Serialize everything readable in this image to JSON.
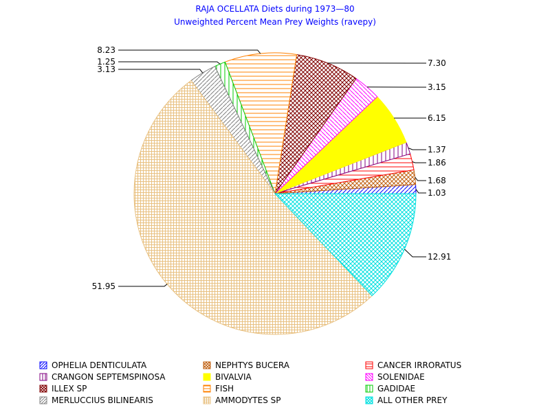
{
  "chart_data": {
    "type": "pie",
    "title": "RAJA OCELLATA Diets during 1973—80",
    "subtitle": "Unweighted Percent Mean Prey Weights (ravepy)",
    "legend_placement": "bottom",
    "slices": [
      {
        "name": "OPHELIA DENTICULATA",
        "value": 1.03,
        "label": "1.03",
        "color": "#0000ff",
        "pattern": "diag-up"
      },
      {
        "name": "NEPHTYS BUCERA",
        "value": 1.68,
        "label": "1.68",
        "color": "#c06010",
        "pattern": "crosshatch-diag"
      },
      {
        "name": "CANCER IRRORATUS",
        "value": 1.86,
        "label": "1.86",
        "color": "#ff0000",
        "pattern": "horizontal"
      },
      {
        "name": "CRANGON SEPTEMSPINOSA",
        "value": 1.37,
        "label": "1.37",
        "color": "#800080",
        "pattern": "vertical"
      },
      {
        "name": "BIVALVIA",
        "value": 6.15,
        "label": "6.15",
        "color": "#ffff00",
        "pattern": "solid"
      },
      {
        "name": "SOLENIDAE",
        "value": 3.15,
        "label": "3.15",
        "color": "#ff00ff",
        "pattern": "diag-down"
      },
      {
        "name": "ILLEX SP",
        "value": 7.3,
        "label": "7.30",
        "color": "#800000",
        "pattern": "crosshatch-diag"
      },
      {
        "name": "FISH",
        "value": 8.23,
        "label": "8.23",
        "color": "#ff8000",
        "pattern": "horizontal"
      },
      {
        "name": "GADIDAE",
        "value": 1.25,
        "label": "1.25",
        "color": "#00cc00",
        "pattern": "vertical"
      },
      {
        "name": "MERLUCCIUS BILINEARIS",
        "value": 3.13,
        "label": "3.13",
        "color": "#808080",
        "pattern": "diag-up"
      },
      {
        "name": "AMMODYTES SP",
        "value": 51.95,
        "label": "51.95",
        "color": "#e8c080",
        "pattern": "grid"
      },
      {
        "name": "ALL OTHER PREY",
        "value": 12.91,
        "label": "12.91",
        "color": "#00e0e0",
        "pattern": "crosshatch-diag"
      }
    ]
  }
}
